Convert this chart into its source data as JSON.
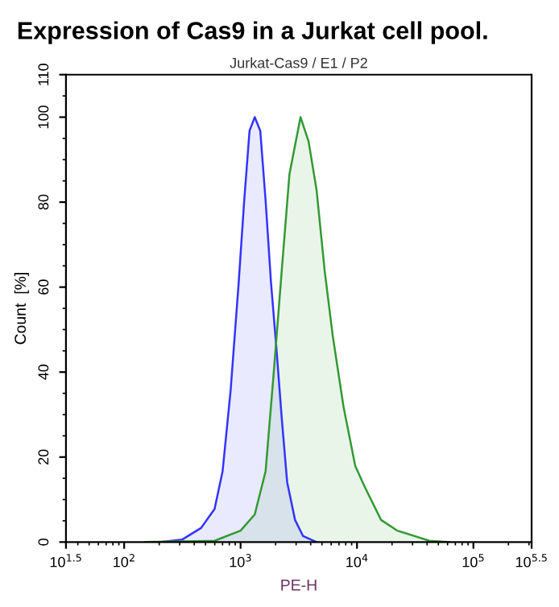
{
  "chart_data": {
    "type": "area",
    "title": "Expression of Cas9 in a Jurkat cell pool.",
    "subtitle": "Jurkat-Cas9 / E1 / P2",
    "xlabel": "PE-H",
    "ylabel": "Count  [%]",
    "log": "x",
    "grid": false,
    "legend": false,
    "xlim": [
      31.6228,
      316228
    ],
    "xticks": [
      {
        "value": 31.6228,
        "label": "10$^{1.5}$"
      },
      {
        "value": 100,
        "label": "10$^{2}$"
      },
      {
        "value": 1000,
        "label": "10$^{3}$"
      },
      {
        "value": 10000,
        "label": "10$^{4}$"
      },
      {
        "value": 100000,
        "label": "10$^{5}$"
      },
      {
        "value": 316228,
        "label": "10$^{5.5}$"
      }
    ],
    "ylim": [
      0,
      110
    ],
    "yticks": [
      0,
      20,
      40,
      60,
      80,
      100,
      110
    ],
    "series": [
      {
        "color": "#3333ff",
        "x": [
          207,
          316,
          457,
          598,
          701,
          822,
          964,
          1074,
          1194,
          1324,
          1476,
          1641,
          1824,
          2028,
          2254,
          2512,
          2938,
          3443,
          4498
        ],
        "values": [
          0,
          0.6,
          3.3,
          7.8,
          16.7,
          35.8,
          61.2,
          80.3,
          96.8,
          100,
          96.8,
          80.3,
          61.2,
          45.9,
          29.4,
          14.1,
          5.2,
          1.4,
          0
        ]
      },
      {
        "color": "#339933",
        "x": [
          151,
          598,
          1000,
          1324,
          1641,
          1923,
          2254,
          2630,
          3273,
          3837,
          4498,
          5284,
          6194,
          7656,
          9661,
          11695,
          16106,
          22131,
          41879,
          63096
        ],
        "values": [
          0,
          0.3,
          2.7,
          6.5,
          16.7,
          39.6,
          63.7,
          86.6,
          100,
          94.3,
          82.8,
          63.7,
          48.5,
          31.9,
          17.9,
          12.9,
          5.2,
          2.7,
          0.3,
          0
        ]
      }
    ]
  }
}
